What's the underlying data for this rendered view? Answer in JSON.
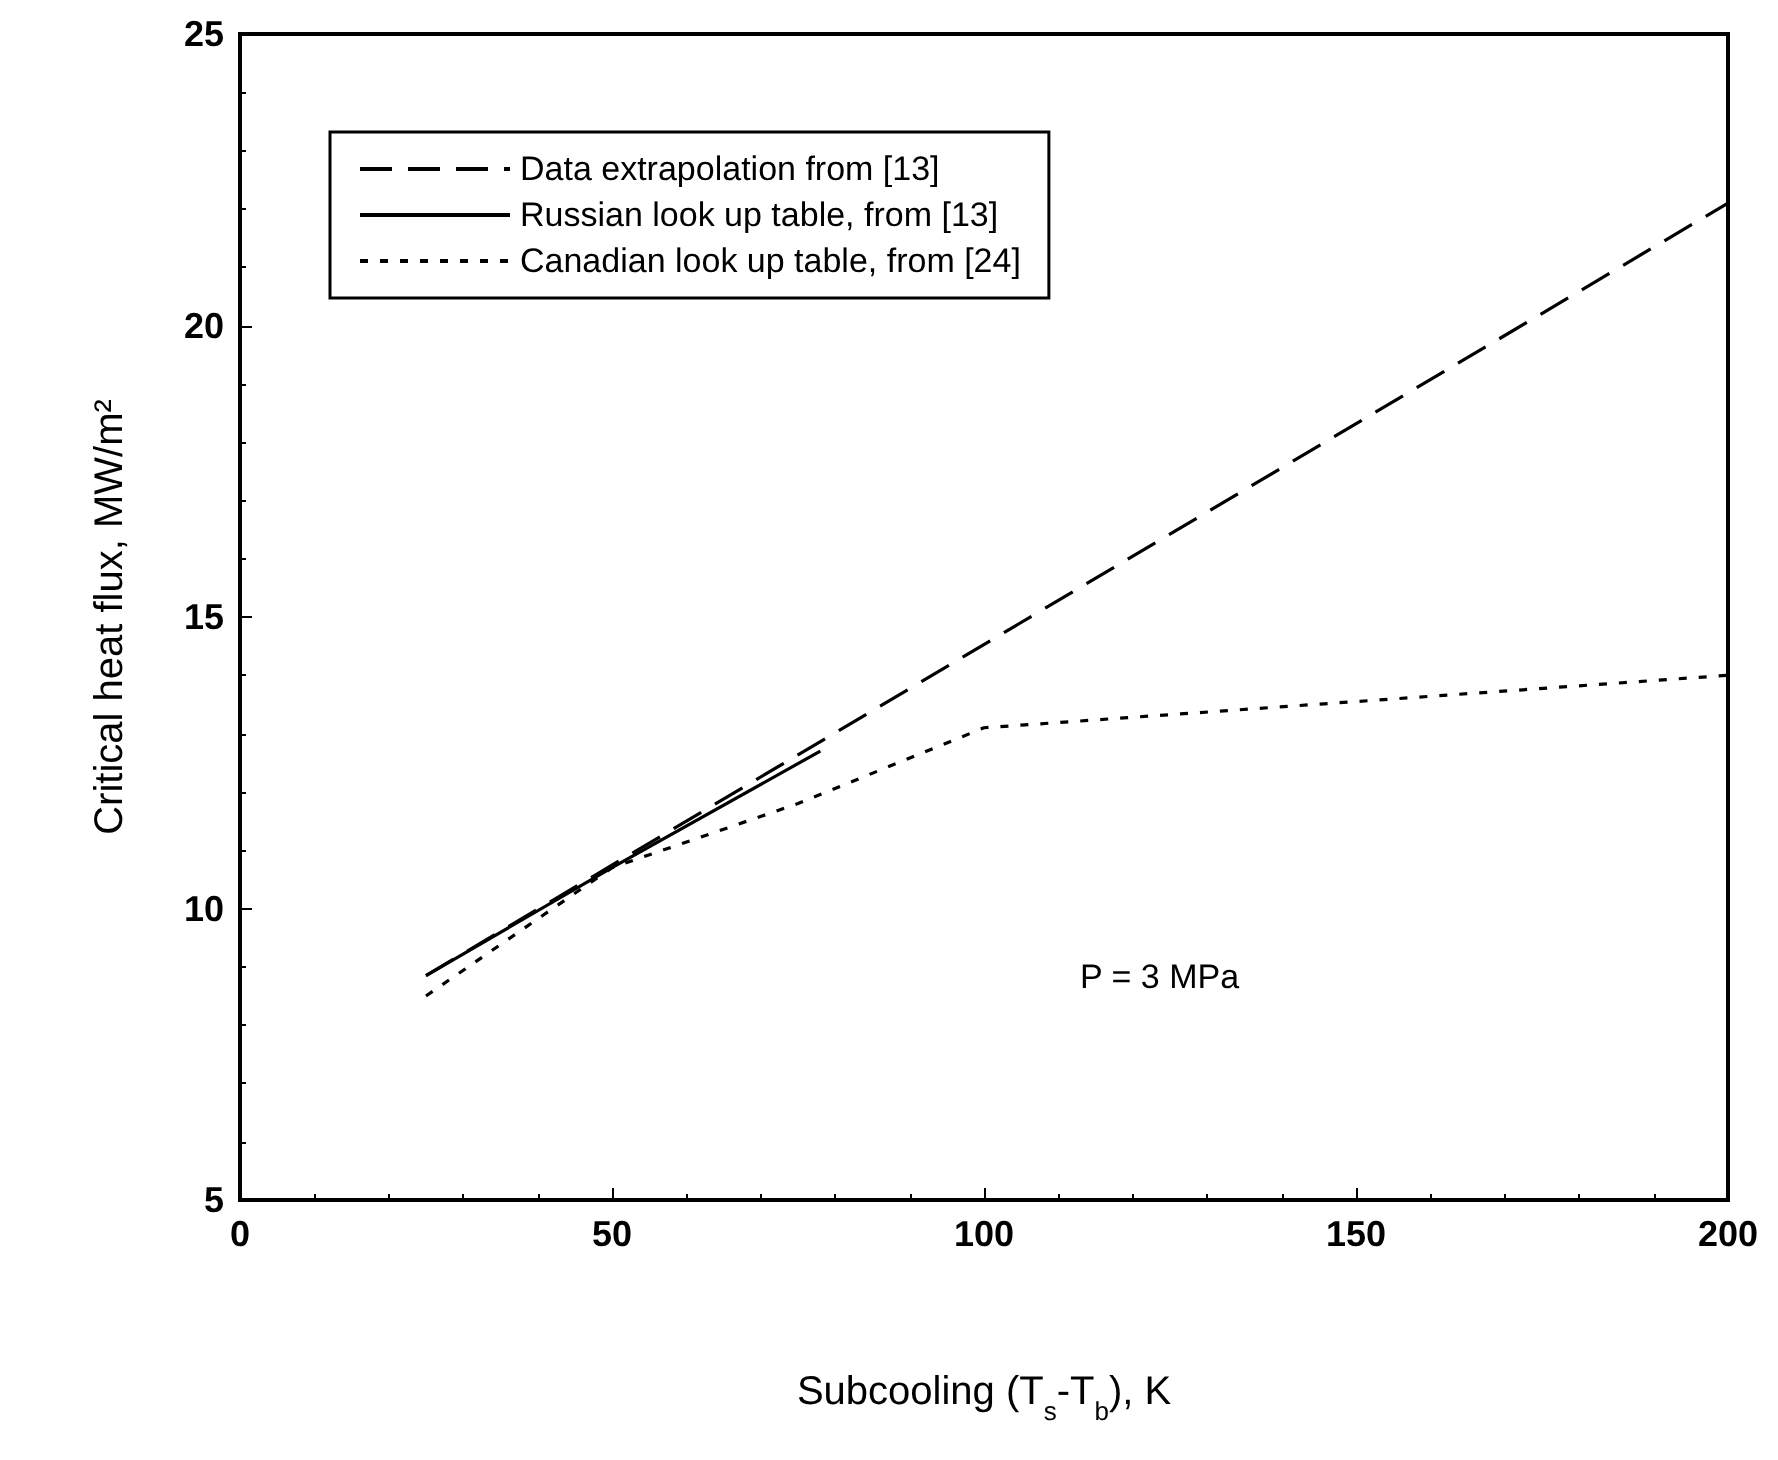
{
  "chart_data": {
    "type": "line",
    "xlabel": "Subcooling (T$_{s}$-T$_{b}$), K",
    "ylabel": "Critical heat flux, MW/m²",
    "series": [
      {
        "name": "Data extrapolation from [13]",
        "color": "#000000",
        "line_style": "dashed",
        "x": [
          25,
          200
        ],
        "values": [
          8.85,
          22.1
        ]
      },
      {
        "name": "Russian look up table, from [13]",
        "color": "#000000",
        "line_style": "solid",
        "x": [
          25,
          50,
          78
        ],
        "values": [
          8.85,
          10.7,
          12.7
        ]
      },
      {
        "name": "Canadian look up table, from [24]",
        "color": "#000000",
        "line_style": "dotted",
        "x": [
          25,
          50,
          75,
          100,
          200
        ],
        "values": [
          8.5,
          10.7,
          11.8,
          13.1,
          14.0
        ]
      }
    ],
    "xlim": [
      0,
      200
    ],
    "xticks": [
      0,
      50,
      100,
      150,
      200
    ],
    "ylim": [
      5,
      25
    ],
    "yticks": [
      5,
      10,
      15,
      20,
      25
    ],
    "legend": "top left",
    "marker": "none",
    "grid": false,
    "annotations": [
      "P = 3 MPa"
    ]
  }
}
